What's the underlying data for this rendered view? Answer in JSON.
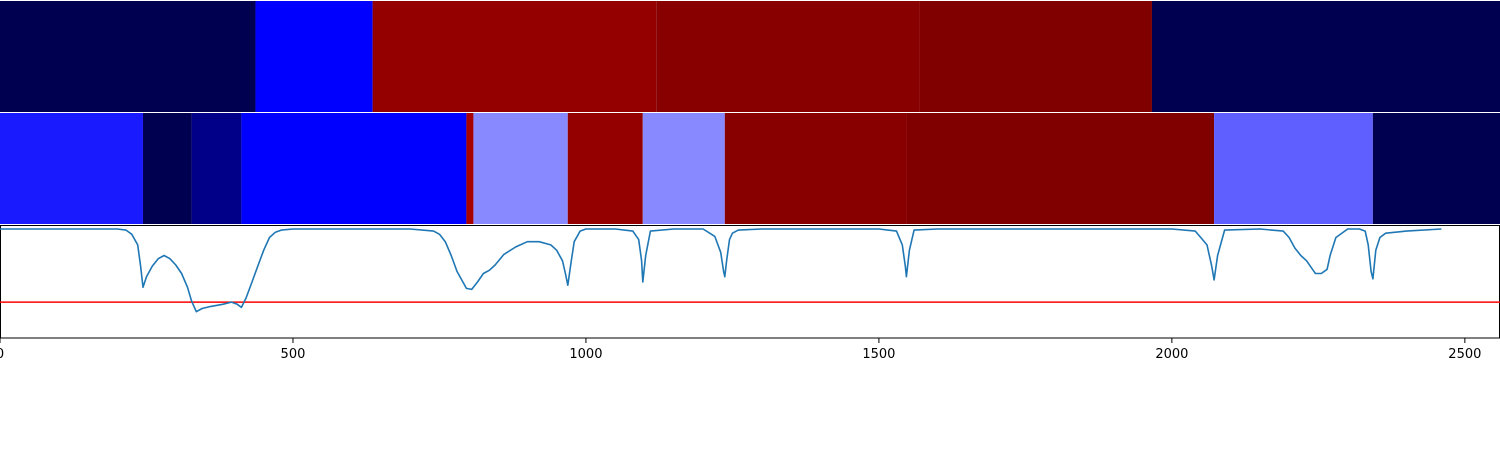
{
  "chart_data": {
    "type": "heatmap",
    "title": "",
    "xlabel": "",
    "ylabel": "",
    "xlim": [
      0,
      2560
    ],
    "x_ticks": [
      0,
      500,
      1000,
      1500,
      2000,
      2500
    ],
    "x_tick_labels": [
      "0",
      "500",
      "1000",
      "1500",
      "2000",
      "2500"
    ],
    "segment_rows": [
      {
        "segments": [
          {
            "start": 0,
            "end": 436,
            "color": "#000050"
          },
          {
            "start": 436,
            "end": 636,
            "color": "#0000ff"
          },
          {
            "start": 636,
            "end": 1120,
            "color": "#940000"
          },
          {
            "start": 1120,
            "end": 1570,
            "color": "#880000"
          },
          {
            "start": 1570,
            "end": 1966,
            "color": "#800000"
          },
          {
            "start": 1966,
            "end": 2560,
            "color": "#000050"
          }
        ]
      },
      {
        "segments": [
          {
            "start": 0,
            "end": 244,
            "color": "#1a1aff"
          },
          {
            "start": 244,
            "end": 327,
            "color": "#000050"
          },
          {
            "start": 327,
            "end": 412,
            "color": "#000088"
          },
          {
            "start": 412,
            "end": 796,
            "color": "#0000ff"
          },
          {
            "start": 796,
            "end": 808,
            "color": "#a80000"
          },
          {
            "start": 808,
            "end": 969,
            "color": "#8888ff"
          },
          {
            "start": 969,
            "end": 1097,
            "color": "#940000"
          },
          {
            "start": 1097,
            "end": 1237,
            "color": "#8888ff"
          },
          {
            "start": 1237,
            "end": 1547,
            "color": "#880000"
          },
          {
            "start": 1547,
            "end": 2072,
            "color": "#800000"
          },
          {
            "start": 2072,
            "end": 2343,
            "color": "#5f5fff"
          },
          {
            "start": 2343,
            "end": 2560,
            "color": "#000050"
          }
        ]
      }
    ],
    "line_panel": {
      "ylim": [
        0,
        1
      ],
      "series_color": "#1f77b4",
      "threshold": 0.31,
      "threshold_color": "#ff0000",
      "x": [
        0,
        200,
        215,
        225,
        235,
        240,
        244,
        250,
        260,
        270,
        280,
        290,
        300,
        310,
        320,
        327,
        335,
        345,
        360,
        380,
        395,
        405,
        412,
        420,
        430,
        440,
        450,
        460,
        470,
        480,
        500,
        600,
        700,
        740,
        750,
        760,
        770,
        780,
        790,
        796,
        805,
        815,
        825,
        835,
        845,
        860,
        880,
        900,
        920,
        940,
        950,
        960,
        965,
        969,
        975,
        980,
        990,
        1000,
        1050,
        1080,
        1090,
        1095,
        1097,
        1102,
        1110,
        1150,
        1200,
        1220,
        1230,
        1235,
        1237,
        1240,
        1245,
        1250,
        1260,
        1300,
        1400,
        1500,
        1530,
        1540,
        1545,
        1547,
        1552,
        1560,
        1600,
        1800,
        2000,
        2040,
        2060,
        2068,
        2072,
        2078,
        2090,
        2150,
        2190,
        2200,
        2210,
        2220,
        2230,
        2240,
        2245,
        2255,
        2265,
        2270,
        2280,
        2300,
        2320,
        2330,
        2335,
        2340,
        2343,
        2348,
        2355,
        2365,
        2400,
        2460
      ],
      "y": [
        1.0,
        1.0,
        0.99,
        0.95,
        0.85,
        0.65,
        0.45,
        0.55,
        0.65,
        0.72,
        0.75,
        0.72,
        0.66,
        0.58,
        0.45,
        0.32,
        0.22,
        0.25,
        0.27,
        0.29,
        0.31,
        0.29,
        0.26,
        0.35,
        0.5,
        0.65,
        0.8,
        0.92,
        0.97,
        0.99,
        1.0,
        1.0,
        1.0,
        0.98,
        0.95,
        0.88,
        0.75,
        0.6,
        0.5,
        0.44,
        0.43,
        0.5,
        0.58,
        0.61,
        0.66,
        0.76,
        0.83,
        0.88,
        0.88,
        0.85,
        0.8,
        0.7,
        0.58,
        0.47,
        0.7,
        0.88,
        0.98,
        1.0,
        1.0,
        0.98,
        0.9,
        0.7,
        0.5,
        0.75,
        0.98,
        1.0,
        1.0,
        0.93,
        0.78,
        0.6,
        0.55,
        0.7,
        0.9,
        0.96,
        0.99,
        1.0,
        1.0,
        1.0,
        0.98,
        0.85,
        0.65,
        0.55,
        0.8,
        0.99,
        1.0,
        1.0,
        1.0,
        0.98,
        0.85,
        0.65,
        0.52,
        0.75,
        0.99,
        1.0,
        0.98,
        0.92,
        0.82,
        0.75,
        0.7,
        0.62,
        0.58,
        0.58,
        0.62,
        0.75,
        0.92,
        1.0,
        1.0,
        0.98,
        0.85,
        0.6,
        0.53,
        0.8,
        0.92,
        0.96,
        0.98,
        1.0
      ]
    }
  }
}
